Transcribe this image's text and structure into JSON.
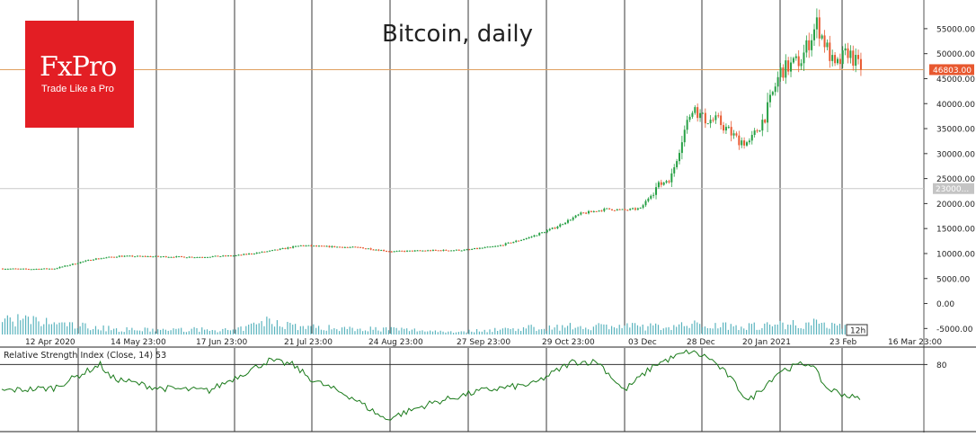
{
  "title": "Bitcoin, daily",
  "logo": {
    "name": "FxPro",
    "tagline": "Trade Like a Pro"
  },
  "colors": {
    "up": "#27a045",
    "down": "#e8582f",
    "volume": "#5ab4be",
    "grid": "#3a3a3a",
    "price_line": "#e0a060",
    "rsi": "#1a7a1a",
    "logo_bg": "#e31e24"
  },
  "chart_data": [
    {
      "type": "candlestick",
      "title": "Bitcoin, daily",
      "x_ticks": [
        "12 Apr 2020",
        "14 May 23:00",
        "17 Jun 23:00",
        "21 Jul 23:00",
        "24 Aug 23:00",
        "27 Sep 23:00",
        "29 Oct 23:00",
        "03 Dec",
        "28 Dec",
        "20 Jan 2021",
        "23 Feb",
        "16 Mar 23:00"
      ],
      "y_ticks": [
        "55000.00",
        "50000.00",
        "45000.00",
        "40000.00",
        "35000.00",
        "30000.00",
        "25000.00",
        "20000.00",
        "15000.00",
        "10000.00",
        "5000.00",
        "0.00",
        "-5000.00"
      ],
      "ylim": [
        -6200,
        57500
      ],
      "last_price_label": "46803.00",
      "last_price": 46803,
      "horizontal_line_label": "23000...",
      "horizontal_line": 23000,
      "period_label": "12h",
      "close_keypoints": [
        [
          0,
          7000
        ],
        [
          10,
          6900
        ],
        [
          20,
          7000
        ],
        [
          35,
          8900
        ],
        [
          45,
          9500
        ],
        [
          60,
          9400
        ],
        [
          75,
          9300
        ],
        [
          90,
          9600
        ],
        [
          103,
          10500
        ],
        [
          115,
          11600
        ],
        [
          125,
          11400
        ],
        [
          138,
          11200
        ],
        [
          150,
          10400
        ],
        [
          163,
          10600
        ],
        [
          178,
          10700
        ],
        [
          191,
          11500
        ],
        [
          203,
          13200
        ],
        [
          213,
          15200
        ],
        [
          223,
          18000
        ],
        [
          233,
          18900
        ],
        [
          240,
          18700
        ],
        [
          246,
          19000
        ],
        [
          252,
          23200
        ],
        [
          258,
          25500
        ],
        [
          262,
          33000
        ],
        [
          266,
          39500
        ],
        [
          270,
          37000
        ],
        [
          276,
          36500
        ],
        [
          283,
          33000
        ],
        [
          288,
          32000
        ],
        [
          294,
          37500
        ],
        [
          300,
          46500
        ],
        [
          308,
          48800
        ],
        [
          314,
          56000
        ],
        [
          318,
          51000
        ],
        [
          321,
          47000
        ],
        [
          326,
          50500
        ],
        [
          331,
          46803
        ]
      ],
      "volume_keypoints": [
        [
          0,
          3500
        ],
        [
          15,
          2700
        ],
        [
          30,
          1900
        ],
        [
          45,
          1100
        ],
        [
          60,
          1000
        ],
        [
          75,
          1100
        ],
        [
          90,
          900
        ],
        [
          103,
          3000
        ],
        [
          115,
          1700
        ],
        [
          130,
          1400
        ],
        [
          150,
          1200
        ],
        [
          175,
          600
        ],
        [
          200,
          1400
        ],
        [
          230,
          1900
        ],
        [
          255,
          1700
        ],
        [
          268,
          2200
        ],
        [
          290,
          1900
        ],
        [
          305,
          2400
        ],
        [
          318,
          2400
        ],
        [
          331,
          1500
        ]
      ]
    },
    {
      "type": "line",
      "title": "Relative Strength Index (Close, 14) 53",
      "y_ticks": [
        "80"
      ],
      "ylim": [
        30,
        92
      ],
      "last_value": 53,
      "keypoints": [
        [
          0,
          60
        ],
        [
          20,
          62
        ],
        [
          33,
          75
        ],
        [
          38,
          80
        ],
        [
          42,
          70
        ],
        [
          60,
          62
        ],
        [
          80,
          60
        ],
        [
          103,
          83
        ],
        [
          112,
          80
        ],
        [
          120,
          68
        ],
        [
          135,
          55
        ],
        [
          148,
          38
        ],
        [
          165,
          50
        ],
        [
          185,
          60
        ],
        [
          205,
          65
        ],
        [
          220,
          82
        ],
        [
          230,
          82
        ],
        [
          240,
          60
        ],
        [
          252,
          80
        ],
        [
          265,
          90
        ],
        [
          273,
          85
        ],
        [
          280,
          72
        ],
        [
          288,
          52
        ],
        [
          300,
          75
        ],
        [
          308,
          80
        ],
        [
          312,
          81
        ],
        [
          318,
          62
        ],
        [
          325,
          57
        ],
        [
          331,
          53
        ]
      ]
    }
  ],
  "chart_data_note": ""
}
